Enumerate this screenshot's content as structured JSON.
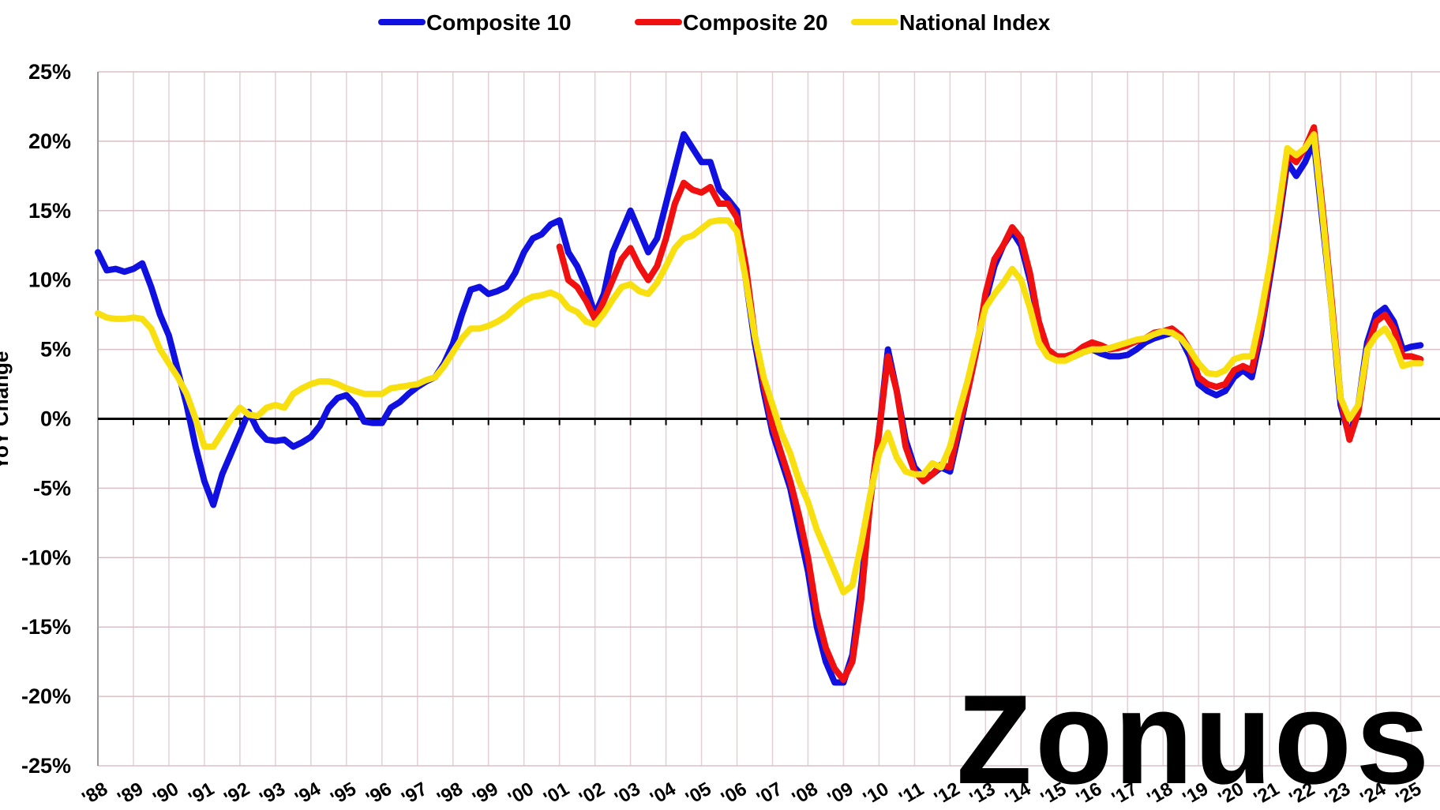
{
  "chart_data": {
    "type": "line",
    "y_label": "YoY Change",
    "watermark": "Zonuos",
    "legend": "top",
    "grid": true,
    "xlim": [
      1988,
      2025.8
    ],
    "ylim": [
      -25,
      25
    ],
    "yticks": [
      {
        "value": -25,
        "label": "-25%"
      },
      {
        "value": -20,
        "label": "-20%"
      },
      {
        "value": -15,
        "label": "-15%"
      },
      {
        "value": -10,
        "label": "-10%"
      },
      {
        "value": -5,
        "label": "-5%"
      },
      {
        "value": 0,
        "label": "0%"
      },
      {
        "value": 5,
        "label": "5%"
      },
      {
        "value": 10,
        "label": "10%"
      },
      {
        "value": 15,
        "label": "15%"
      },
      {
        "value": 20,
        "label": "20%"
      },
      {
        "value": 25,
        "label": "25%"
      }
    ],
    "xticks": [
      {
        "value": 1988,
        "label": "'88"
      },
      {
        "value": 1989,
        "label": "'89"
      },
      {
        "value": 1990,
        "label": "'90"
      },
      {
        "value": 1991,
        "label": "'91"
      },
      {
        "value": 1992,
        "label": "'92"
      },
      {
        "value": 1993,
        "label": "'93"
      },
      {
        "value": 1994,
        "label": "'94"
      },
      {
        "value": 1995,
        "label": "'95"
      },
      {
        "value": 1996,
        "label": "'96"
      },
      {
        "value": 1997,
        "label": "'97"
      },
      {
        "value": 1998,
        "label": "'98"
      },
      {
        "value": 1999,
        "label": "'99"
      },
      {
        "value": 2000,
        "label": "'00"
      },
      {
        "value": 2001,
        "label": "'01"
      },
      {
        "value": 2002,
        "label": "'02"
      },
      {
        "value": 2003,
        "label": "'03"
      },
      {
        "value": 2004,
        "label": "'04"
      },
      {
        "value": 2005,
        "label": "'05"
      },
      {
        "value": 2006,
        "label": "'06"
      },
      {
        "value": 2007,
        "label": "'07"
      },
      {
        "value": 2008,
        "label": "'08"
      },
      {
        "value": 2009,
        "label": "'09"
      },
      {
        "value": 2010,
        "label": "'10"
      },
      {
        "value": 2011,
        "label": "'11"
      },
      {
        "value": 2012,
        "label": "'12"
      },
      {
        "value": 2013,
        "label": "'13"
      },
      {
        "value": 2014,
        "label": "'14"
      },
      {
        "value": 2015,
        "label": "'15"
      },
      {
        "value": 2016,
        "label": "'16"
      },
      {
        "value": 2017,
        "label": "'17"
      },
      {
        "value": 2018,
        "label": "'18"
      },
      {
        "value": 2019,
        "label": "'19"
      },
      {
        "value": 2020,
        "label": "'20"
      },
      {
        "value": 2021,
        "label": "'21"
      },
      {
        "value": 2022,
        "label": "'22"
      },
      {
        "value": 2023,
        "label": "'23"
      },
      {
        "value": 2024,
        "label": "'24"
      },
      {
        "value": 2025,
        "label": "'25"
      }
    ],
    "x": [
      1988,
      1988.25,
      1988.5,
      1988.75,
      1989,
      1989.25,
      1989.5,
      1989.75,
      1990,
      1990.25,
      1990.5,
      1990.75,
      1991,
      1991.25,
      1991.5,
      1991.75,
      1992,
      1992.25,
      1992.5,
      1992.75,
      1993,
      1993.25,
      1993.5,
      1993.75,
      1994,
      1994.25,
      1994.5,
      1994.75,
      1995,
      1995.25,
      1995.5,
      1995.75,
      1996,
      1996.25,
      1996.5,
      1996.75,
      1997,
      1997.25,
      1997.5,
      1997.75,
      1998,
      1998.25,
      1998.5,
      1998.75,
      1999,
      1999.25,
      1999.5,
      1999.75,
      2000,
      2000.25,
      2000.5,
      2000.75,
      2001,
      2001.25,
      2001.5,
      2001.75,
      2002,
      2002.25,
      2002.5,
      2002.75,
      2003,
      2003.25,
      2003.5,
      2003.75,
      2004,
      2004.25,
      2004.5,
      2004.75,
      2005,
      2005.25,
      2005.5,
      2005.75,
      2006,
      2006.25,
      2006.5,
      2006.75,
      2007,
      2007.25,
      2007.5,
      2007.75,
      2008,
      2008.25,
      2008.5,
      2008.75,
      2009,
      2009.25,
      2009.5,
      2009.75,
      2010,
      2010.25,
      2010.5,
      2010.75,
      2011,
      2011.25,
      2011.5,
      2011.75,
      2012,
      2012.25,
      2012.5,
      2012.75,
      2013,
      2013.25,
      2013.5,
      2013.75,
      2014,
      2014.25,
      2014.5,
      2014.75,
      2015,
      2015.25,
      2015.5,
      2015.75,
      2016,
      2016.25,
      2016.5,
      2016.75,
      2017,
      2017.25,
      2017.5,
      2017.75,
      2018,
      2018.25,
      2018.5,
      2018.75,
      2019,
      2019.25,
      2019.5,
      2019.75,
      2020,
      2020.25,
      2020.5,
      2020.75,
      2021,
      2021.25,
      2021.5,
      2021.75,
      2022,
      2022.25,
      2022.5,
      2022.75,
      2023,
      2023.25,
      2023.5,
      2023.75,
      2024,
      2024.25,
      2024.5,
      2024.75,
      2025,
      2025.25
    ],
    "series": [
      {
        "name": "Composite 10",
        "color": "#1010e0",
        "values": [
          12,
          10.7,
          10.8,
          10.6,
          10.8,
          11.2,
          9.5,
          7.5,
          6,
          3.5,
          1,
          -2,
          -4.5,
          -6.2,
          -4,
          -2.5,
          -1,
          0.5,
          -0.8,
          -1.5,
          -1.6,
          -1.5,
          -2,
          -1.7,
          -1.3,
          -0.5,
          0.8,
          1.5,
          1.7,
          1,
          -0.2,
          -0.3,
          -0.3,
          0.8,
          1.2,
          1.8,
          2.3,
          2.7,
          3,
          4,
          5.4,
          7.5,
          9.3,
          9.5,
          9,
          9.2,
          9.5,
          10.5,
          12,
          13,
          13.3,
          14,
          14.3,
          12,
          11,
          9.5,
          7.5,
          9,
          12,
          13.5,
          15,
          13.5,
          12,
          13,
          15.5,
          18,
          20.5,
          19.5,
          18.5,
          18.5,
          16.5,
          15.8,
          15,
          10,
          5.5,
          2,
          -1,
          -3,
          -5,
          -8,
          -11,
          -15,
          -17.5,
          -19,
          -19,
          -17,
          -12,
          -6,
          -1,
          5,
          2,
          -1.5,
          -3.5,
          -4.2,
          -4,
          -3.5,
          -3.8,
          -1,
          2,
          5,
          8.5,
          11,
          12.5,
          13.5,
          12.5,
          10,
          7,
          5,
          4.5,
          4.3,
          4.5,
          4.8,
          5,
          4.7,
          4.5,
          4.5,
          4.6,
          5,
          5.5,
          5.8,
          6,
          6.2,
          5.8,
          4.5,
          2.5,
          2,
          1.7,
          2,
          3,
          3.5,
          3,
          6,
          10,
          14,
          18.5,
          17.5,
          18.5,
          20,
          14,
          8,
          1,
          -1.3,
          1,
          5.5,
          7.5,
          8,
          7,
          5,
          5.2,
          5.3
        ]
      },
      {
        "name": "Composite 20",
        "color": "#f01010",
        "values": [
          null,
          null,
          null,
          null,
          null,
          null,
          null,
          null,
          null,
          null,
          null,
          null,
          null,
          null,
          null,
          null,
          null,
          null,
          null,
          null,
          null,
          null,
          null,
          null,
          null,
          null,
          null,
          null,
          null,
          null,
          null,
          null,
          null,
          null,
          null,
          null,
          null,
          null,
          null,
          null,
          null,
          null,
          null,
          null,
          null,
          null,
          null,
          null,
          null,
          null,
          null,
          null,
          12.4,
          10,
          9.5,
          8.5,
          7.2,
          8.5,
          10,
          11.5,
          12.3,
          11,
          10,
          11,
          13,
          15.5,
          17,
          16.5,
          16.3,
          16.7,
          15.5,
          15.5,
          14.5,
          11,
          6,
          2.5,
          -0.5,
          -2.5,
          -4.5,
          -7,
          -10,
          -14,
          -16.5,
          -18,
          -18.8,
          -17.5,
          -13,
          -6,
          -1,
          4.5,
          2,
          -2,
          -3.8,
          -4.5,
          -4,
          -3.3,
          -3.5,
          -0.5,
          2,
          5,
          9,
          11.5,
          12.5,
          13.8,
          13,
          10.5,
          7,
          5,
          4.5,
          4.5,
          4.7,
          5.2,
          5.5,
          5.3,
          5,
          5.1,
          5.3,
          5.6,
          5.8,
          6.2,
          6.3,
          6.5,
          6,
          5,
          3,
          2.5,
          2.3,
          2.5,
          3.5,
          3.8,
          3.5,
          6.5,
          10.5,
          14.5,
          19,
          18.5,
          19.5,
          21,
          15,
          8.5,
          1.5,
          -1.5,
          0.5,
          5,
          7,
          7.5,
          6.5,
          4.5,
          4.5,
          4.3
        ]
      },
      {
        "name": "National Index",
        "color": "#f8e010",
        "values": [
          7.6,
          7.3,
          7.2,
          7.2,
          7.3,
          7.2,
          6.5,
          5,
          4,
          3,
          1.8,
          0,
          -2,
          -2,
          -1,
          0,
          0.8,
          0.3,
          0.2,
          0.8,
          1,
          0.8,
          1.8,
          2.2,
          2.5,
          2.7,
          2.7,
          2.5,
          2.2,
          2,
          1.8,
          1.8,
          1.8,
          2.2,
          2.3,
          2.4,
          2.5,
          2.8,
          3,
          3.8,
          4.8,
          5.8,
          6.5,
          6.5,
          6.7,
          7,
          7.4,
          8,
          8.5,
          8.8,
          8.9,
          9.1,
          8.8,
          8,
          7.7,
          7,
          6.8,
          7.6,
          8.6,
          9.5,
          9.7,
          9.2,
          9,
          9.8,
          11,
          12.3,
          13,
          13.2,
          13.7,
          14.2,
          14.3,
          14.3,
          13.5,
          10,
          6,
          3,
          1,
          -1,
          -2.5,
          -4.5,
          -6,
          -8,
          -9.5,
          -11,
          -12.5,
          -12,
          -9,
          -5.5,
          -2.5,
          -1,
          -2.8,
          -3.8,
          -4,
          -4,
          -3.2,
          -3.5,
          -2,
          0.5,
          2.8,
          5.5,
          8,
          9,
          9.8,
          10.8,
          10,
          8,
          5.5,
          4.5,
          4.2,
          4.2,
          4.5,
          4.8,
          5,
          5,
          5.1,
          5.3,
          5.5,
          5.7,
          5.8,
          6.1,
          6.3,
          6.2,
          5.8,
          5,
          4,
          3.3,
          3.2,
          3.5,
          4.3,
          4.5,
          4.5,
          7.5,
          11,
          15,
          19.5,
          19,
          19.5,
          20.5,
          14.5,
          8,
          1.5,
          0,
          1,
          5,
          6,
          6.5,
          5.5,
          3.8,
          4,
          4
        ]
      }
    ]
  }
}
